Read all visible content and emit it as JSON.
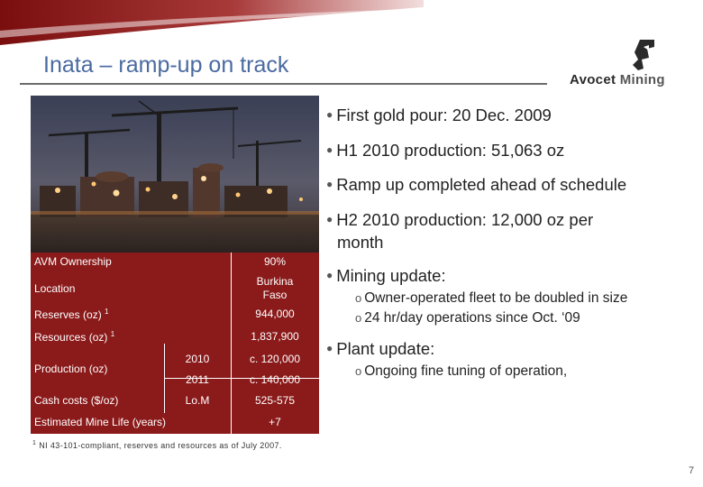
{
  "slide": {
    "title": "Inata – ramp-up on track",
    "page_number": "7"
  },
  "logo": {
    "word1": "Avocet",
    "word2": "Mining"
  },
  "bullets": {
    "b1": "First gold pour: 20 Dec. 2009",
    "b2": "H1 2010 production: 51,063 oz",
    "b3": "Ramp up completed ahead of schedule",
    "b4_line1": "H2 2010 production: 12,000 oz per",
    "b4_line2": "month",
    "b5": "Mining update:",
    "b5_sub1": "Owner-operated fleet to be doubled in size",
    "b5_sub2": "24 hr/day operations since Oct. ‘09",
    "b6": "Plant update:",
    "b6_sub1": "Ongoing fine tuning of operation,"
  },
  "table": {
    "ownership_label": "AVM Ownership",
    "ownership_value": "90%",
    "location_label": "Location",
    "location_value_line1": "Burkina",
    "location_value_line2": "Faso",
    "reserves_label": "Reserves (oz)",
    "reserves_sup": "1",
    "reserves_value": "944,000",
    "resources_label": "Resources (oz)",
    "resources_sup": "1",
    "resources_value": "1,837,900",
    "production_label": "Production (oz)",
    "production_year1": "2010",
    "production_value1": "c. 120,000",
    "production_year2": "2011",
    "production_value2": "c. 140,000",
    "cash_label": "Cash costs ($/oz)",
    "cash_period": "Lo.M",
    "cash_value": "525-575",
    "life_label": "Estimated Mine Life (years)",
    "life_value": "+7"
  },
  "footnote": {
    "sup": "1",
    "text": "NI 43-101-compliant, reserves and resources as of July 2007."
  }
}
